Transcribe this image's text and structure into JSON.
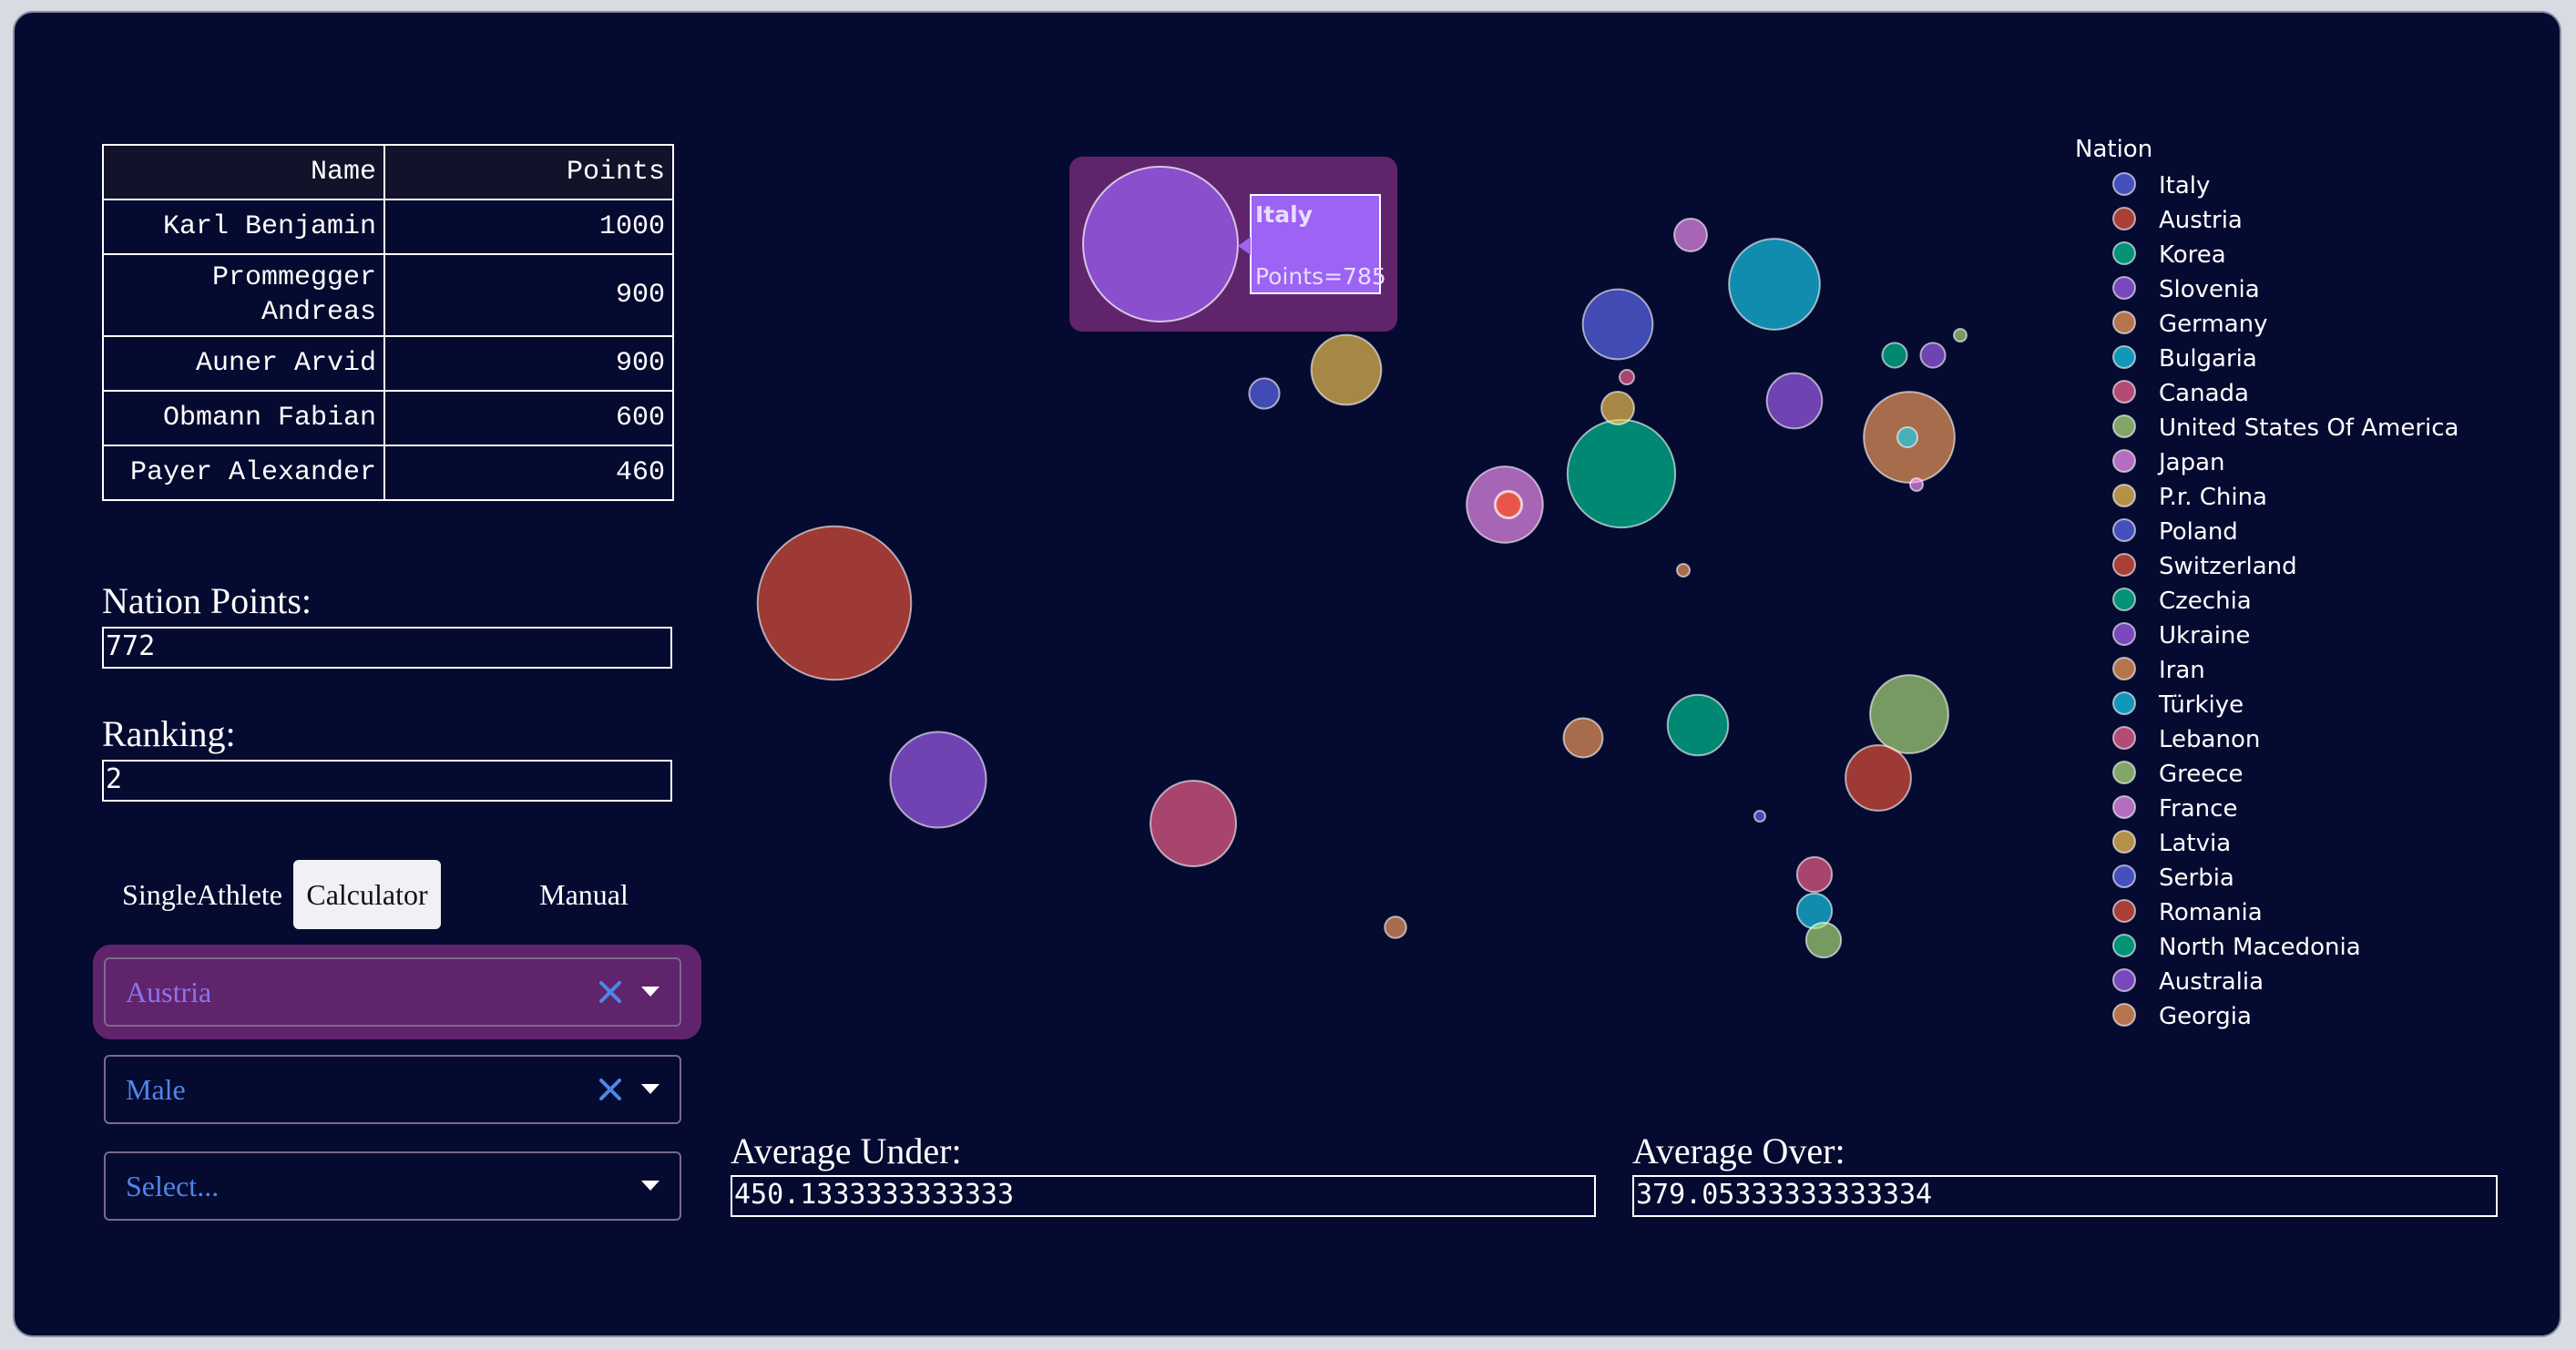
{
  "athletes": {
    "headers": {
      "name": "Name",
      "points": "Points"
    },
    "rows": [
      {
        "name": "Karl Benjamin",
        "points": "1000"
      },
      {
        "name": "Prommegger Andreas",
        "points": "900"
      },
      {
        "name": "Auner Arvid",
        "points": "900"
      },
      {
        "name": "Obmann Fabian",
        "points": "600"
      },
      {
        "name": "Payer Alexander",
        "points": "460"
      }
    ]
  },
  "nation_points": {
    "label": "Nation Points:",
    "value": "772"
  },
  "ranking": {
    "label": "Ranking:",
    "value": "2"
  },
  "tabs": {
    "single": "SingleAthlete",
    "calculator": "Calculator",
    "manual": "Manual"
  },
  "filters": {
    "country": "Austria",
    "gender": "Male",
    "third_placeholder": "Select..."
  },
  "average_under": {
    "label": "Average Under:",
    "value": "450.1333333333333"
  },
  "average_over": {
    "label": "Average Over:",
    "value": "379.05333333333334"
  },
  "colors": {
    "background": "#050a30",
    "highlight": "#60246c",
    "tooltip": "#9c63f5",
    "palette": [
      "#636efa",
      "#ef553b",
      "#00cc96",
      "#ab63fa",
      "#ffa15a",
      "#19d3f3",
      "#ff6692",
      "#b6e880",
      "#ff97ff",
      "#fecb52"
    ]
  },
  "chart_data": {
    "type": "scatter",
    "legend_title": "Nation",
    "legend_position": "right",
    "tooltip": {
      "nation": "Italy",
      "text": "Points=785"
    },
    "series": [
      {
        "name": "Italy",
        "value": 785
      },
      {
        "name": "Austria",
        "value": 772
      },
      {
        "name": "Korea",
        "value": 380
      },
      {
        "name": "Slovenia",
        "value": 300
      },
      {
        "name": "Germany",
        "value": 270
      },
      {
        "name": "Bulgaria",
        "value": 270
      },
      {
        "name": "Canada",
        "value": 240
      },
      {
        "name": "United States Of America",
        "value": 200
      },
      {
        "name": "Japan",
        "value": 190
      },
      {
        "name": "P.r. China",
        "value": 160
      },
      {
        "name": "Poland",
        "value": 160
      },
      {
        "name": "Switzerland",
        "value": 140
      },
      {
        "name": "Czechia",
        "value": 120
      },
      {
        "name": "Ukraine",
        "value": 100
      },
      {
        "name": "Iran",
        "value": 50
      },
      {
        "name": "Türkiye",
        "value": 40
      },
      {
        "name": "Lebanon",
        "value": 40
      },
      {
        "name": "Greece",
        "value": 40
      },
      {
        "name": "France",
        "value": 35
      },
      {
        "name": "Latvia",
        "value": 35
      },
      {
        "name": "Serbia",
        "value": 30
      },
      {
        "name": "Romania",
        "value": 25
      },
      {
        "name": "North Macedonia",
        "value": 20
      },
      {
        "name": "Australia",
        "value": 20
      },
      {
        "name": "Georgia",
        "value": 15
      }
    ]
  }
}
